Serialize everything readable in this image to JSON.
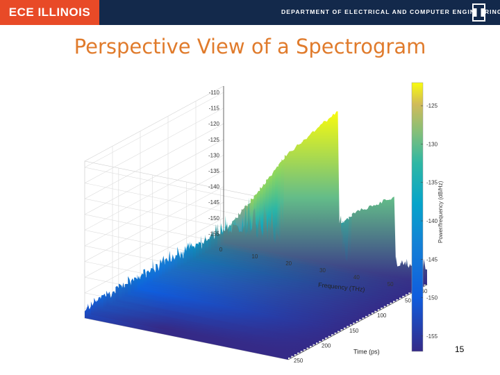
{
  "header": {
    "logo_text": "ECE ILLINOIS",
    "department": "DEPARTMENT OF ELECTRICAL AND COMPUTER ENGINEERING",
    "brand_orange": "#e84a27",
    "brand_blue": "#13294b"
  },
  "slide": {
    "title": "Perspective View of a Spectrogram",
    "page_number": "15"
  },
  "chart_data": {
    "type": "surface",
    "colormap": "parula",
    "title": "",
    "xlabel": "Frequency (THz)",
    "ylabel": "Time (ps)",
    "zlabel": "",
    "colorbar_label": "Power/frequency (dB/Hz)",
    "x_ticks": [
      "0",
      "10",
      "20",
      "30",
      "40",
      "50",
      "60"
    ],
    "y_ticks": [
      "50",
      "100",
      "150",
      "200",
      "250"
    ],
    "z_ticks": [
      "-110",
      "-115",
      "-120",
      "-125",
      "-130",
      "-135",
      "-140",
      "-145",
      "-150",
      "-155"
    ],
    "colorbar_ticks": [
      "-125",
      "-130",
      "-135",
      "-140",
      "-145",
      "-150",
      "-155"
    ],
    "xlim": [
      0,
      60
    ],
    "ylim": [
      0,
      250
    ],
    "zlim": [
      -158,
      -108
    ],
    "clim": [
      -157,
      -122
    ],
    "grid": true,
    "peaks": [
      {
        "x_center": 26,
        "width": 16,
        "peak_z": -111,
        "noise_floor": -152
      },
      {
        "x_center": 44,
        "width": 13,
        "peak_z": -135,
        "noise_floor": -154
      }
    ]
  }
}
